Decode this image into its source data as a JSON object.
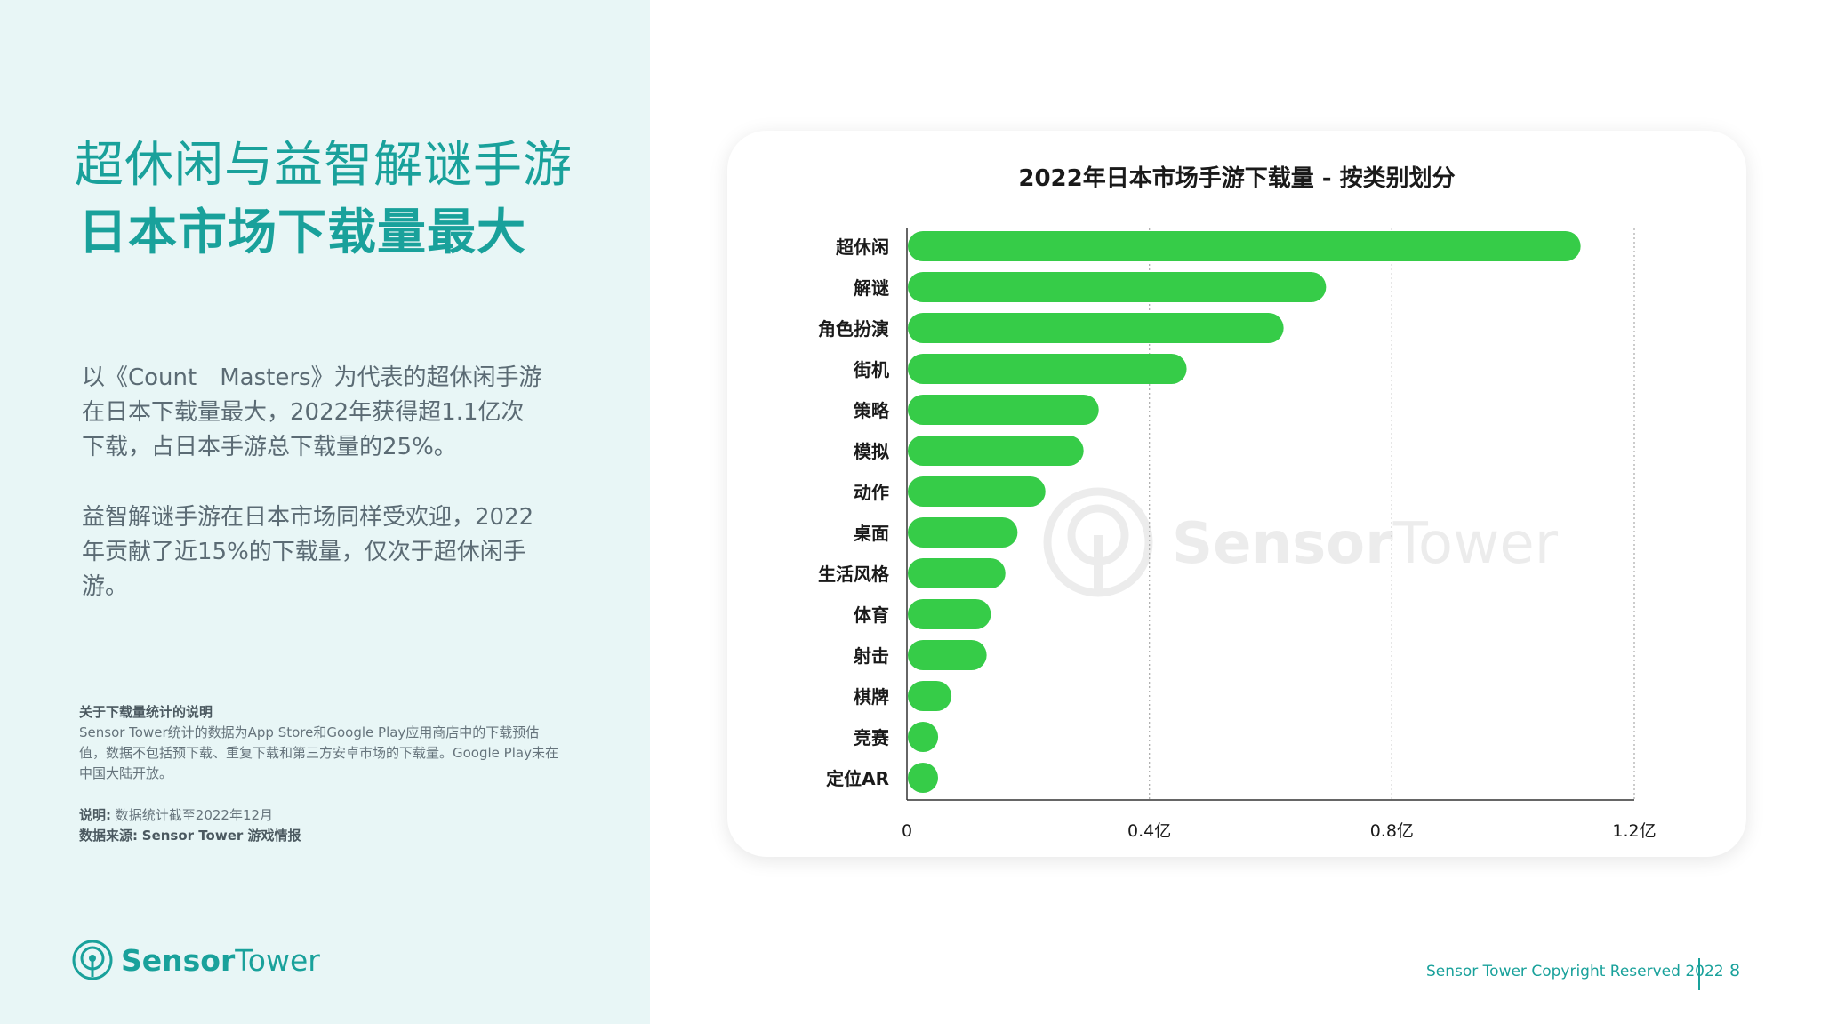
{
  "slide": {
    "title_line1": "超休闲与益智解谜手游",
    "title_line2": "日本市场下载量最大",
    "paragraph1": "以《Count　Masters》为代表的超休闲手游在日本下载量最大，2022年获得超1.1亿次下载，占日本手游总下载量的25%。",
    "paragraph2": "益智解谜手游在日本市场同样受欢迎，2022年贡献了近15%的下载量，仅次于超休闲手游。",
    "note_heading": "关于下载量统计的说明",
    "note_body": "Sensor Tower统计的数据为App Store和Google Play应用商店中的下载预估值，数据不包括预下载、重复下载和第三方安卓市场的下载量。Google Play未在中国大陆开放。",
    "note_label": "说明:",
    "note_text": "数据统计截至2022年12月",
    "source_label": "数据来源:",
    "source_text": "Sensor Tower 游戏情报",
    "logo_text_bold": "Sensor",
    "logo_text_regular": "Tower",
    "watermark_bold": "Sensor",
    "watermark_regular": "Tower",
    "footer_copyright": "Sensor Tower Copyright Reserved 2022",
    "page_number": "8"
  },
  "colors": {
    "teal": "#19a19b",
    "bar": "#36cc48",
    "left_bg": "#e8f6f6"
  },
  "chart_data": {
    "type": "bar",
    "orientation": "horizontal",
    "title": "2022年日本市场手游下载量 - 按类别划分",
    "categories": [
      "超休闲",
      "解谜",
      "角色扮演",
      "街机",
      "策略",
      "模拟",
      "动作",
      "桌面",
      "生活风格",
      "体育",
      "射击",
      "棋牌",
      "竞赛",
      "定位AR"
    ],
    "values": [
      1.11,
      0.69,
      0.62,
      0.46,
      0.315,
      0.29,
      0.227,
      0.181,
      0.161,
      0.137,
      0.13,
      0.072,
      0.05,
      0.04
    ],
    "unit": "亿",
    "xlim": [
      0,
      1.2
    ],
    "xticks": [
      0,
      0.4,
      0.8,
      1.2
    ],
    "xtick_labels": [
      "0",
      "0.4亿",
      "0.8亿",
      "1.2亿"
    ],
    "grid": "vertical dotted",
    "legend": "none"
  }
}
